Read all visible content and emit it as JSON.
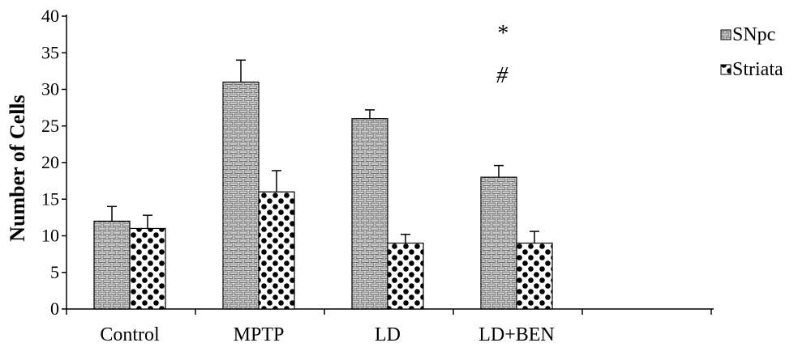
{
  "chart_data": {
    "type": "bar",
    "ylabel": "Number of Cells",
    "xlabel": "",
    "ylim": [
      0,
      40
    ],
    "yticks": [
      0,
      5,
      10,
      15,
      20,
      25,
      30,
      35,
      40
    ],
    "categories": [
      "Control",
      "MPTP",
      "LD",
      "LD+BEN"
    ],
    "series": [
      {
        "name": "SNpc",
        "pattern": "brick",
        "values": [
          12,
          31,
          26,
          18
        ],
        "errors": [
          2,
          3,
          1.2,
          1.6
        ]
      },
      {
        "name": "Striata",
        "pattern": "dots",
        "values": [
          11,
          16,
          9,
          9
        ],
        "errors": [
          1.8,
          2.9,
          1.2,
          1.6
        ]
      }
    ],
    "annotations": [
      "*",
      "#"
    ],
    "legend_position": "top-right",
    "grid": false
  }
}
